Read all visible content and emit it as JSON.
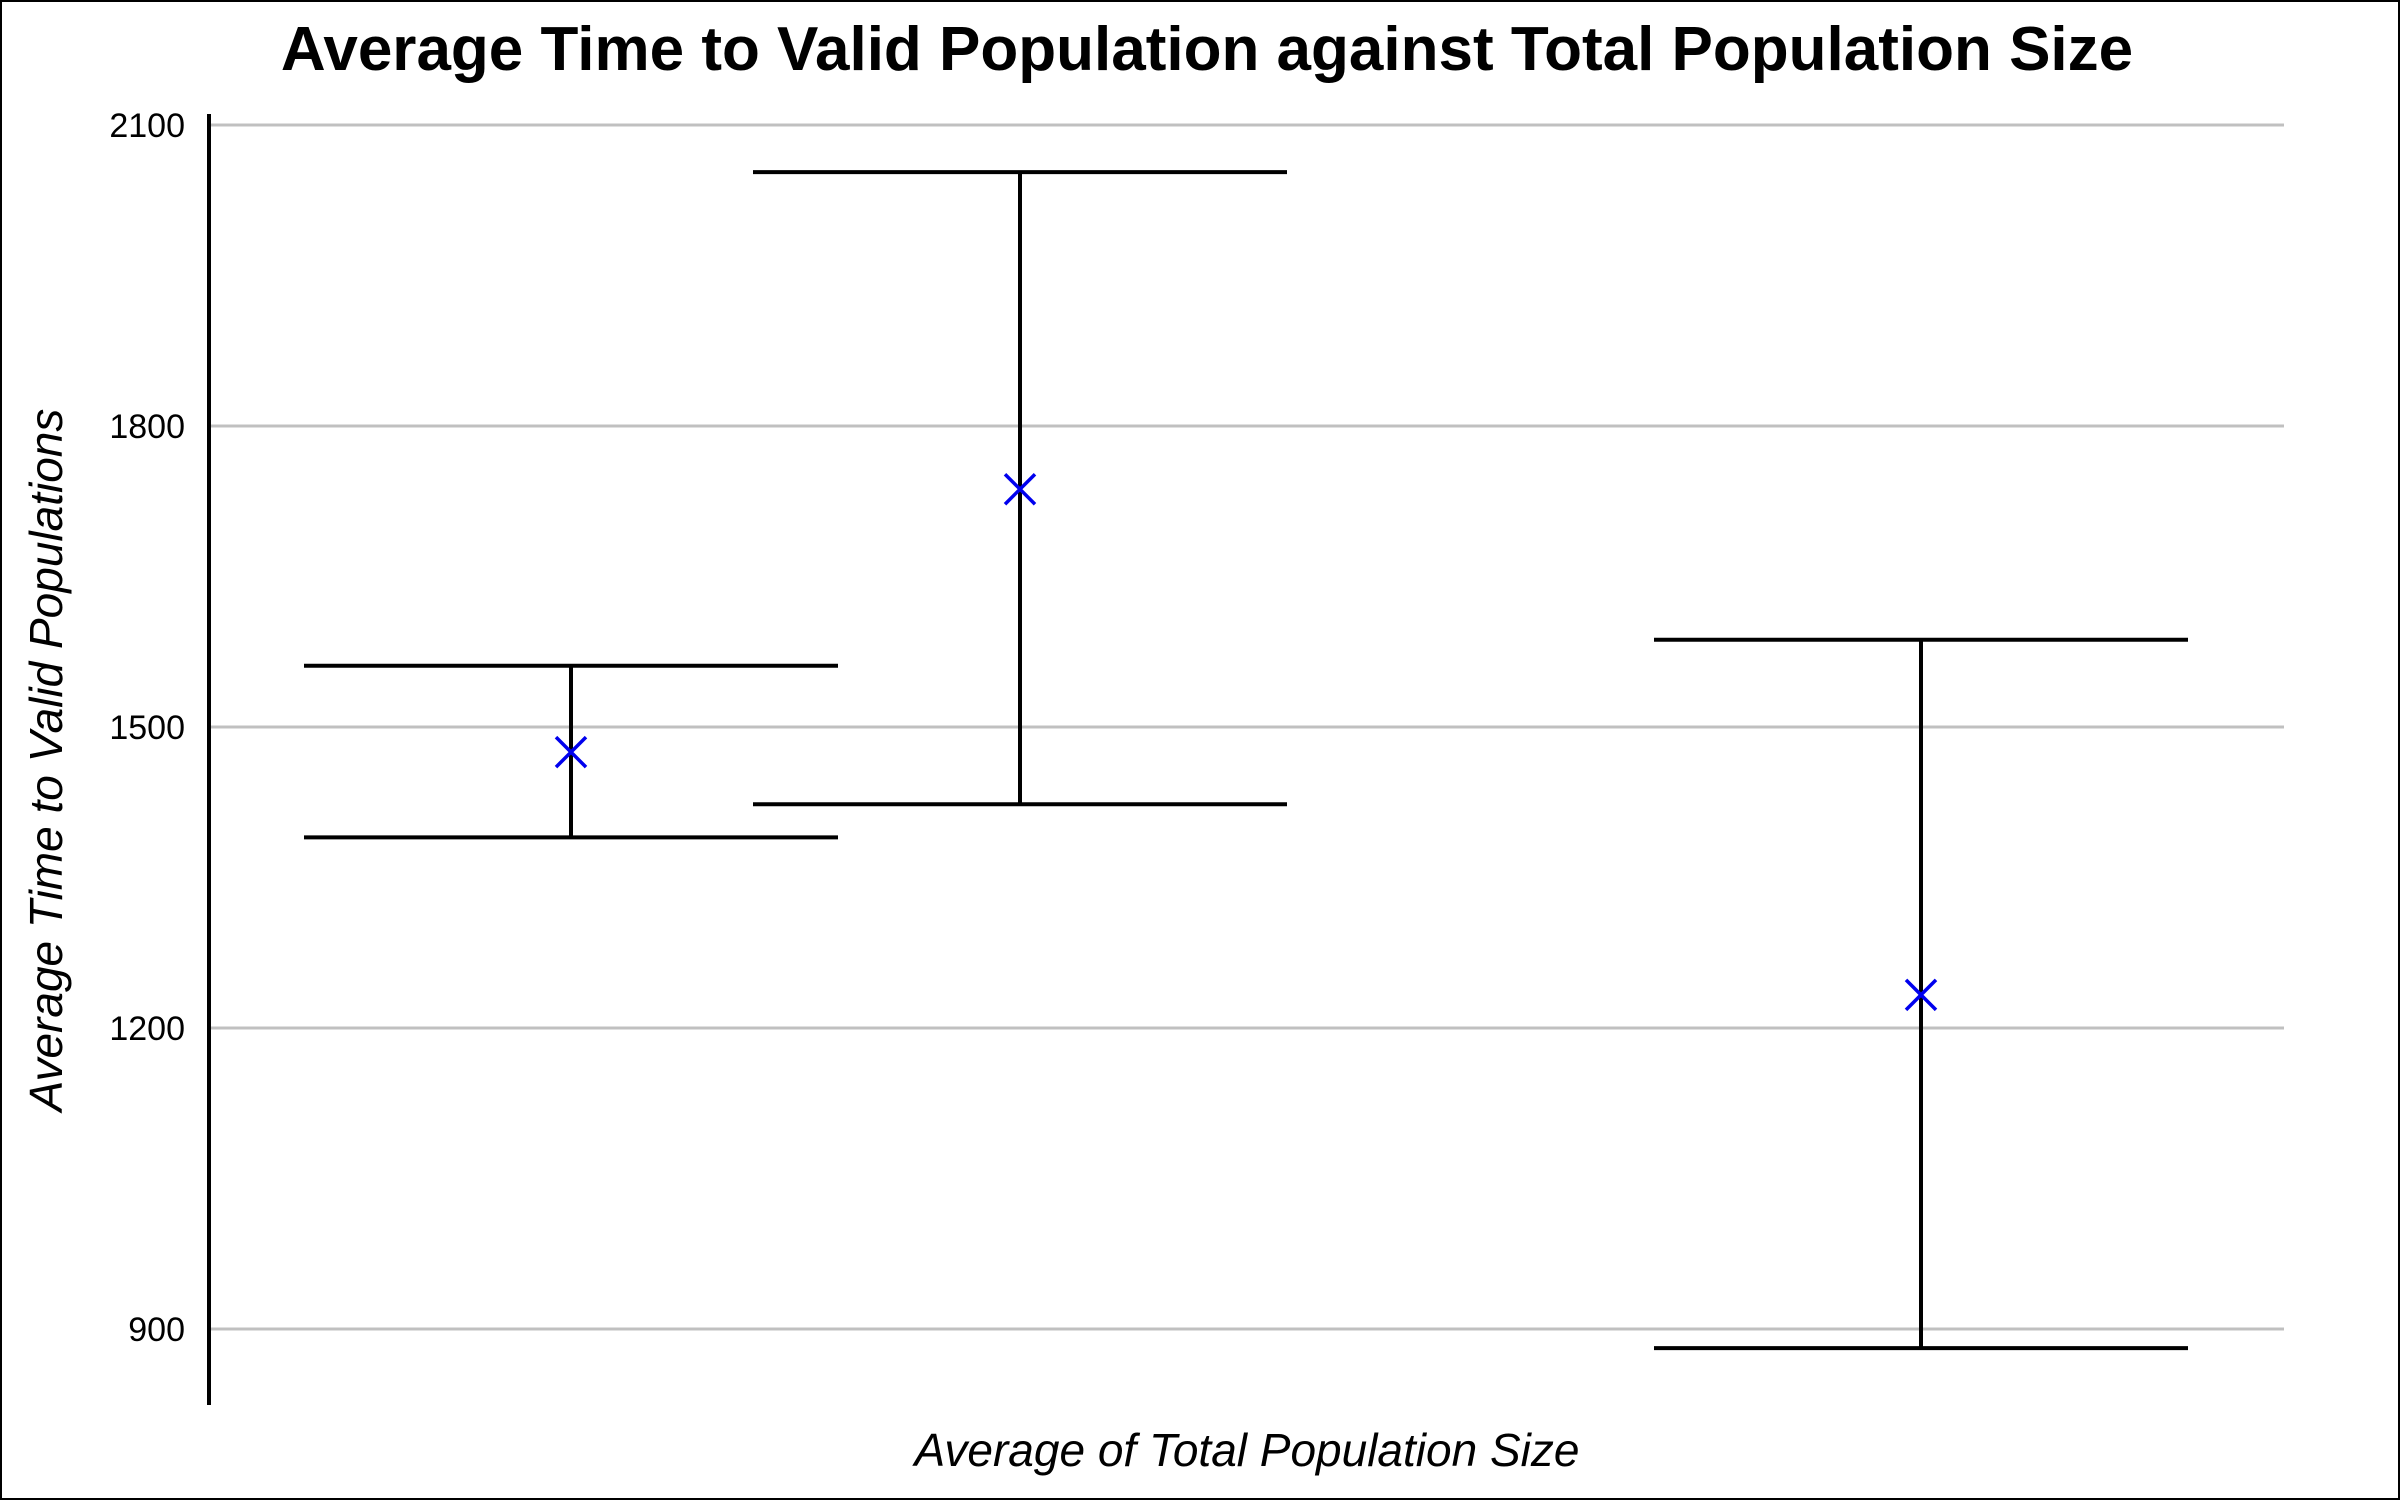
{
  "chart_data": {
    "type": "scatter",
    "title": "Average Time to Valid Population against Total Population Size",
    "xlabel": "Average of Total Population Size",
    "ylabel": "Average Time to Valid Populations",
    "ylim": [
      825,
      2110
    ],
    "y_ticks": [
      900,
      1200,
      1500,
      1800,
      2100
    ],
    "x_tick_labels": [],
    "grid": "horizontal",
    "legend": "none",
    "marker": "x",
    "colors": {
      "marker": "#0000ee",
      "error_bar": "#000000",
      "grid": "#c0c0c0",
      "axis": "#000000"
    },
    "points": [
      {
        "mean": 1475,
        "lower": 1390,
        "upper": 1561
      },
      {
        "mean": 1737,
        "lower": 1423,
        "upper": 2053
      },
      {
        "mean": 1233,
        "lower": 881,
        "upper": 1587
      }
    ]
  }
}
